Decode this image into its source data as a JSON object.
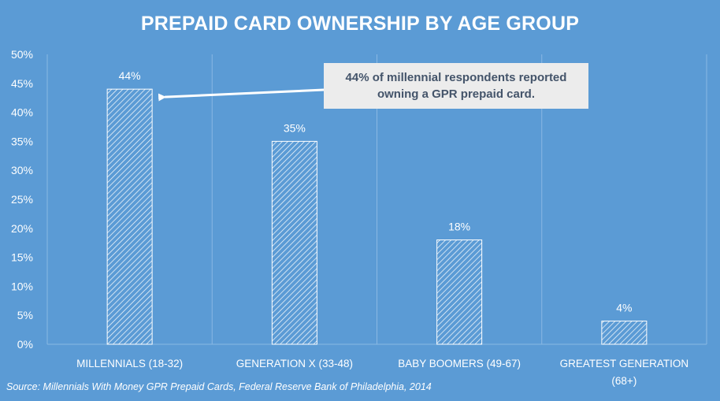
{
  "colors": {
    "background": "#5b9bd5",
    "text": "#ffffff",
    "bar_stroke": "#ffffff",
    "bar_hatch": "#ffffff",
    "gridline": "#8ab8e3",
    "callout_bg": "#ececec",
    "callout_text": "#44546a",
    "arrow": "#ffffff"
  },
  "chart_data": {
    "type": "bar",
    "title": "PREPAID CARD OWNERSHIP BY AGE GROUP",
    "categories": [
      "MILLENNIALS (18-32)",
      "GENERATION X (33-48)",
      "BABY BOOMERS (49-67)",
      "GREATEST GENERATION (68+)"
    ],
    "category_lines": [
      [
        "MILLENNIALS (18-32)"
      ],
      [
        "GENERATION X (33-48)"
      ],
      [
        "BABY BOOMERS (49-67)"
      ],
      [
        "GREATEST GENERATION",
        "(68+)"
      ]
    ],
    "values": [
      44,
      35,
      18,
      4
    ],
    "data_labels": [
      "44%",
      "35%",
      "18%",
      "4%"
    ],
    "ylim": [
      0,
      50
    ],
    "yticks": [
      0,
      5,
      10,
      15,
      20,
      25,
      30,
      35,
      40,
      45,
      50
    ],
    "ytick_labels": [
      "0%",
      "5%",
      "10%",
      "15%",
      "20%",
      "25%",
      "30%",
      "35%",
      "40%",
      "45%",
      "50%"
    ],
    "grid": "vertical category separators",
    "bar_fill": "diagonal hatch",
    "annotation": {
      "text": "44% of millennial respondents reported\nowning a GPR prepaid card.",
      "points_to": "MILLENNIALS (18-32)"
    },
    "source": "Source: Millennials With Money GPR Prepaid Cards, Federal Reserve Bank of Philadelphia, 2014"
  }
}
